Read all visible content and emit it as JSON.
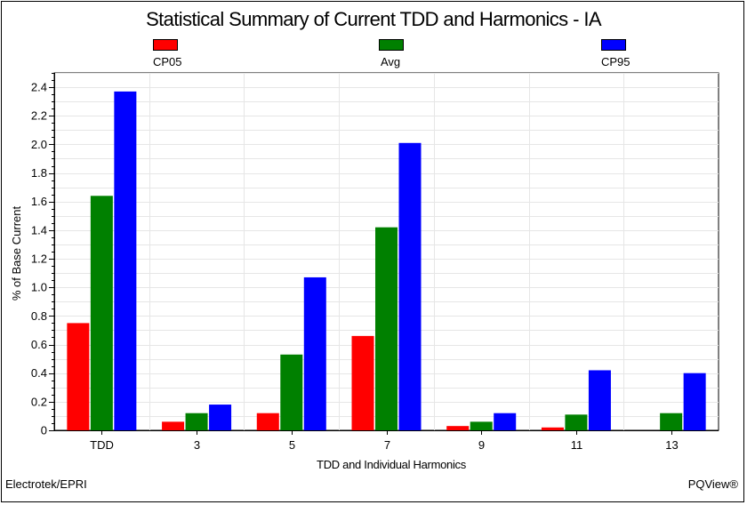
{
  "chart_data": {
    "type": "bar",
    "title": "Statistical Summary of Current TDD and Harmonics - IA",
    "xlabel": "TDD and Individual Harmonics",
    "ylabel": "% of Base Current",
    "categories": [
      "TDD",
      "3",
      "5",
      "7",
      "9",
      "11",
      "13"
    ],
    "series": [
      {
        "name": "CP05",
        "color": "#ff0000",
        "values": [
          0.75,
          0.06,
          0.12,
          0.66,
          0.03,
          0.02,
          0.0
        ]
      },
      {
        "name": "Avg",
        "color": "#008000",
        "values": [
          1.64,
          0.12,
          0.53,
          1.42,
          0.06,
          0.11,
          0.12
        ]
      },
      {
        "name": "CP95",
        "color": "#0000ff",
        "values": [
          2.37,
          0.18,
          1.07,
          2.01,
          0.12,
          0.42,
          0.4
        ]
      }
    ],
    "ylim": [
      0,
      2.5
    ],
    "yticks": [
      "0",
      "0.2",
      "0.4",
      "0.6",
      "0.8",
      "1.0",
      "1.2",
      "1.4",
      "1.6",
      "1.8",
      "2.0",
      "2.2",
      "2.4"
    ],
    "grid": true,
    "legend_position": "top"
  },
  "footer": {
    "left": "Electrotek/EPRI",
    "right": "PQView®"
  }
}
